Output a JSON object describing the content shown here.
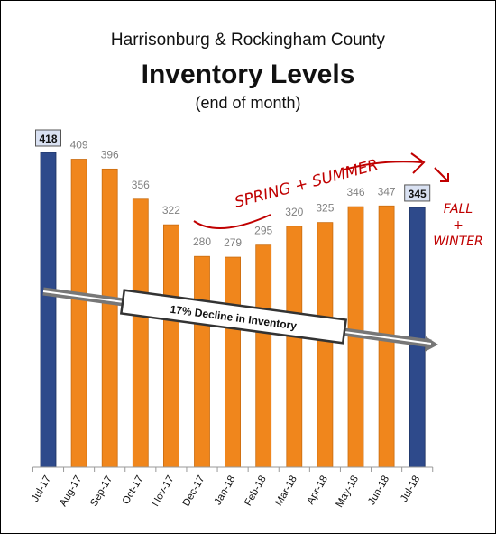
{
  "chart_data": {
    "type": "bar",
    "title": "Harrisonburg & Rockingham County",
    "heading": "Inventory Levels",
    "subtitle": "(end of month)",
    "categories": [
      "Jul-17",
      "Aug-17",
      "Sep-17",
      "Oct-17",
      "Nov-17",
      "Dec-17",
      "Jan-18",
      "Feb-18",
      "Mar-18",
      "Apr-18",
      "May-18",
      "Jun-18",
      "Jul-18"
    ],
    "values": [
      418,
      409,
      396,
      356,
      322,
      280,
      279,
      295,
      320,
      325,
      346,
      347,
      345
    ],
    "highlighted": [
      true,
      false,
      false,
      false,
      false,
      false,
      false,
      false,
      false,
      false,
      false,
      false,
      true
    ],
    "ylim": [
      0,
      450
    ],
    "grid": false,
    "colors": {
      "highlight": "#2e4a8b",
      "bar": "#f0861c",
      "label_box": "#d9e1f2",
      "annotation_red": "#c00000",
      "label_gray": "#808080"
    },
    "annotations": {
      "decline": "17% Decline in Inventory",
      "spring_summer": "SPRING + SUMMER",
      "fall_winter": [
        "FALL",
        "+",
        "WINTER"
      ]
    }
  }
}
